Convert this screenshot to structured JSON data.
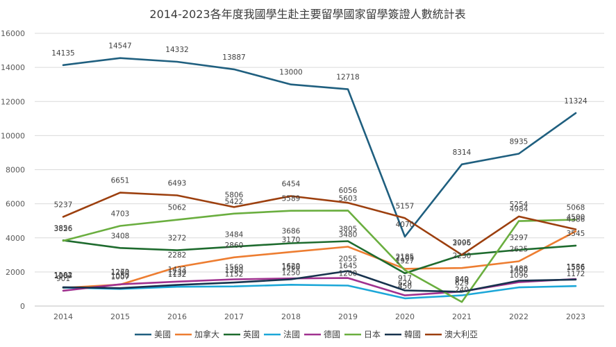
{
  "chart_data": {
    "type": "line",
    "title": "2014-2023各年度我國學生赴主要留學國家留學簽證人數統計表",
    "x": [
      "2014",
      "2015",
      "2016",
      "2017",
      "2018",
      "2019",
      "2020",
      "2021",
      "2022",
      "2023"
    ],
    "ylim": [
      0,
      16000
    ],
    "yticks": [
      0,
      2000,
      4000,
      6000,
      8000,
      10000,
      12000,
      14000,
      16000
    ],
    "grid": true,
    "legend_position": "bottom",
    "series": [
      {
        "name": "美國",
        "color": "#1f5f7f",
        "values": [
          14135,
          14547,
          14332,
          13887,
          13000,
          12718,
          4070,
          8314,
          8935,
          11324
        ]
      },
      {
        "name": "加拿大",
        "color": "#ed7d31",
        "values": [
          1067,
          1260,
          2282,
          2860,
          3170,
          3480,
          2185,
          2230,
          2625,
          4386
        ]
      },
      {
        "name": "英國",
        "color": "#1e6b2e",
        "values": [
          3856,
          3408,
          3272,
          3484,
          3686,
          3805,
          1927,
          2996,
          3297,
          3545
        ]
      },
      {
        "name": "法國",
        "color": "#1ca7d8",
        "values": [
          1084,
          1007,
          1132,
          1152,
          1250,
          1200,
          450,
          629,
          1096,
          1172
        ]
      },
      {
        "name": "德國",
        "color": "#a0318f",
        "values": [
          901,
          1273,
          1433,
          1569,
          1620,
          1645,
          629,
          849,
          1400,
          1586
        ]
      },
      {
        "name": "日本",
        "color": "#6aae3f",
        "values": [
          3826,
          4703,
          5062,
          5422,
          5589,
          5603,
          2105,
          240,
          4984,
          5068
        ]
      },
      {
        "name": "韓國",
        "color": "#17324d",
        "values": [
          1102,
          1050,
          1239,
          1380,
          1568,
          2055,
          917,
          840,
          1488,
          1556
        ]
      },
      {
        "name": "澳大利亞",
        "color": "#9c3f0e",
        "values": [
          5237,
          6651,
          6493,
          5806,
          6454,
          6056,
          5157,
          3005,
          5254,
          4500
        ]
      }
    ]
  }
}
